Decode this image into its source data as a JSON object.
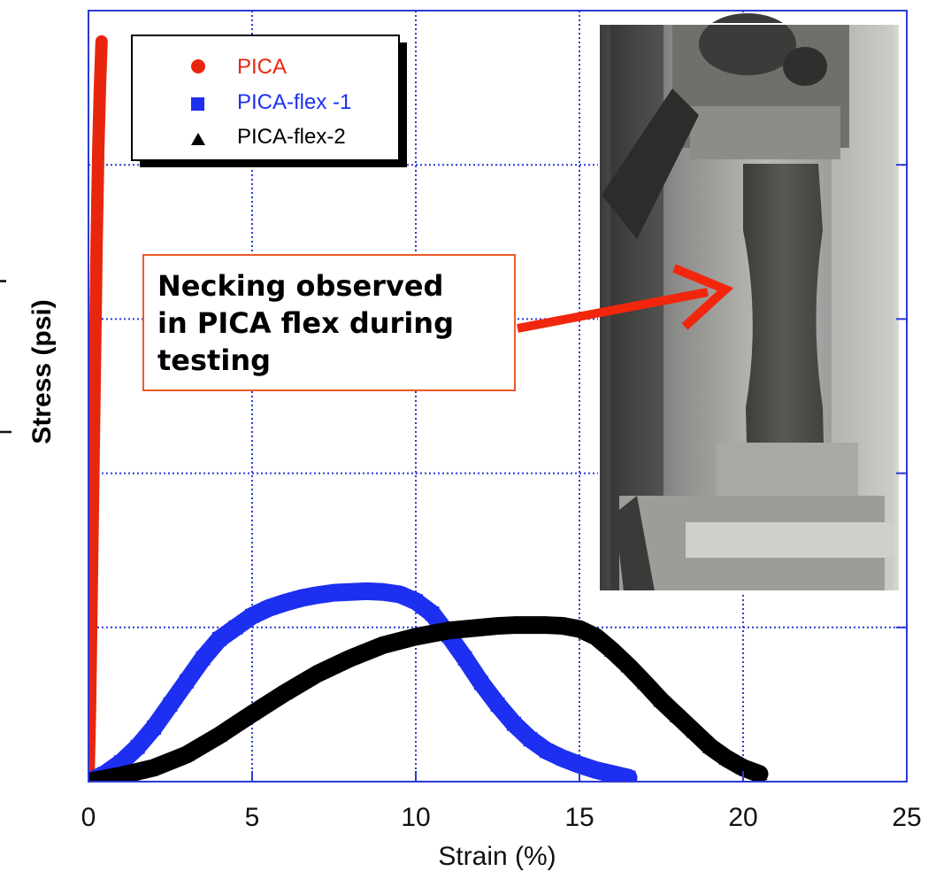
{
  "chart_data": {
    "type": "line",
    "xlabel": "Strain (%)",
    "ylabel": "Stress  (psi)",
    "ylabel_fragments": [
      "r",
      "|"
    ],
    "xlim": [
      0,
      25
    ],
    "x_ticks": [
      "0",
      "5",
      "10",
      "15",
      "20",
      "25"
    ],
    "y_ticks": [],
    "y_gridlines_fraction": [
      0.2,
      0.4,
      0.6,
      0.8
    ],
    "grid": true,
    "legend_position": "top-left",
    "series": [
      {
        "name": "PICA",
        "color": "#e8260e",
        "marker": "circle",
        "x": [
          0.0,
          0.05,
          0.1,
          0.15,
          0.2,
          0.25,
          0.3,
          0.35,
          0.4
        ],
        "y": [
          0.0,
          0.1,
          0.25,
          0.4,
          0.55,
          0.7,
          0.82,
          0.9,
          0.96
        ]
      },
      {
        "name": "PICA-flex -1",
        "color": "#1d2ff0",
        "marker": "square",
        "x": [
          0.0,
          0.5,
          1.0,
          1.5,
          2.0,
          2.5,
          3.0,
          3.5,
          4.0,
          4.5,
          5.0,
          5.5,
          6.0,
          6.5,
          7.0,
          7.5,
          8.0,
          8.5,
          9.0,
          9.5,
          10.0,
          10.5,
          11.0,
          11.5,
          12.0,
          12.5,
          13.0,
          13.5,
          14.0,
          14.5,
          15.0,
          15.5,
          16.0,
          16.5
        ],
        "y": [
          0.0,
          0.01,
          0.025,
          0.045,
          0.07,
          0.1,
          0.13,
          0.16,
          0.185,
          0.2,
          0.215,
          0.225,
          0.232,
          0.238,
          0.242,
          0.245,
          0.246,
          0.247,
          0.246,
          0.243,
          0.234,
          0.218,
          0.19,
          0.16,
          0.128,
          0.1,
          0.075,
          0.055,
          0.04,
          0.03,
          0.022,
          0.015,
          0.01,
          0.005
        ]
      },
      {
        "name": "PICA-flex-2",
        "color": "#000000",
        "marker": "triangle",
        "x": [
          0.0,
          1.0,
          2.0,
          3.0,
          4.0,
          5.0,
          6.0,
          7.0,
          8.0,
          9.0,
          10.0,
          11.0,
          12.0,
          12.5,
          13.0,
          13.5,
          14.0,
          14.5,
          15.0,
          15.5,
          16.0,
          16.5,
          17.0,
          17.5,
          18.0,
          18.5,
          19.0,
          19.5,
          20.0,
          20.5
        ],
        "y": [
          0.0,
          0.008,
          0.018,
          0.035,
          0.06,
          0.088,
          0.115,
          0.14,
          0.16,
          0.177,
          0.188,
          0.196,
          0.2,
          0.202,
          0.203,
          0.203,
          0.203,
          0.202,
          0.198,
          0.188,
          0.17,
          0.15,
          0.128,
          0.105,
          0.085,
          0.065,
          0.045,
          0.03,
          0.018,
          0.01
        ]
      }
    ],
    "annotation": "Necking observed in PICA flex during testing",
    "annotation_lines": [
      "Necking observed",
      "in PICA flex during",
      "testing"
    ]
  }
}
